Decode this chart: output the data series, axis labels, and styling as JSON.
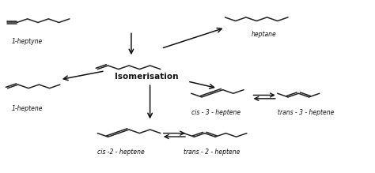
{
  "bg_color": "#ffffff",
  "fig_width": 4.74,
  "fig_height": 2.19,
  "dpi": 100,
  "labels": {
    "1heptyne": "1-heptyne",
    "heptane": "heptane",
    "1heptene": "1-heptene",
    "isomerisation": "Isomerisation",
    "cis3": "cis - 3 - heptene",
    "trans3": "trans - 3 - heptene",
    "cis2": "cis -2 - heptene",
    "trans2": "trans - 2 - heptene"
  },
  "font_sizes": {
    "labels": 5.5,
    "isomerisation": 7.5
  },
  "molecule_color": "#222222",
  "arrow_color": "#111111",
  "label_color": "#111111"
}
